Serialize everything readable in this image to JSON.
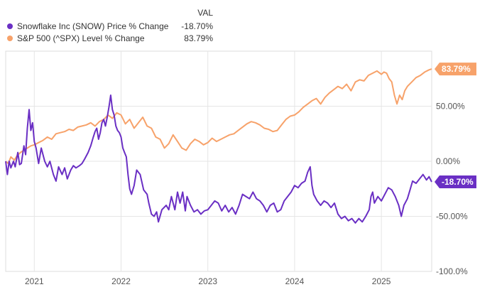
{
  "chart_data": {
    "type": "line",
    "legend_header": "VAL",
    "ylim": [
      -100,
      100
    ],
    "xlim": [
      2020.67,
      2025.58
    ],
    "y_ticks": [
      {
        "value": 50,
        "label": "50.00%"
      },
      {
        "value": 0,
        "label": "0.00%"
      },
      {
        "value": -50,
        "label": "-50.00%"
      },
      {
        "value": -100,
        "label": "-100.0%"
      }
    ],
    "x_ticks": [
      {
        "value": 2021,
        "label": "2021"
      },
      {
        "value": 2022,
        "label": "2022"
      },
      {
        "value": 2023,
        "label": "2023"
      },
      {
        "value": 2024,
        "label": "2024"
      },
      {
        "value": 2025,
        "label": "2025"
      }
    ],
    "grid": true,
    "legend_position": "top-left",
    "series": [
      {
        "name": "Snowflake Inc (SNOW) Price % Change",
        "value_label": "-18.70%",
        "last_value": -18.7,
        "color": "#6a2fc4",
        "points": [
          [
            2020.67,
            0
          ],
          [
            2020.69,
            -12
          ],
          [
            2020.71,
            0
          ],
          [
            2020.73,
            -6
          ],
          [
            2020.76,
            0
          ],
          [
            2020.78,
            -5
          ],
          [
            2020.81,
            8
          ],
          [
            2020.83,
            -3
          ],
          [
            2020.85,
            -2
          ],
          [
            2020.88,
            14
          ],
          [
            2020.9,
            6
          ],
          [
            2020.92,
            30
          ],
          [
            2020.94,
            47
          ],
          [
            2020.96,
            28
          ],
          [
            2020.98,
            35
          ],
          [
            2021.0,
            18
          ],
          [
            2021.02,
            12
          ],
          [
            2021.05,
            -2
          ],
          [
            2021.08,
            12
          ],
          [
            2021.12,
            0
          ],
          [
            2021.15,
            -5
          ],
          [
            2021.18,
            0
          ],
          [
            2021.22,
            -12
          ],
          [
            2021.25,
            -18
          ],
          [
            2021.28,
            -5
          ],
          [
            2021.32,
            -12
          ],
          [
            2021.35,
            -6
          ],
          [
            2021.38,
            -16
          ],
          [
            2021.42,
            -8
          ],
          [
            2021.45,
            -4
          ],
          [
            2021.48,
            -6
          ],
          [
            2021.52,
            -4
          ],
          [
            2021.55,
            -2
          ],
          [
            2021.58,
            2
          ],
          [
            2021.62,
            8
          ],
          [
            2021.65,
            14
          ],
          [
            2021.68,
            22
          ],
          [
            2021.7,
            27
          ],
          [
            2021.72,
            30
          ],
          [
            2021.74,
            20
          ],
          [
            2021.76,
            26
          ],
          [
            2021.78,
            35
          ],
          [
            2021.8,
            38
          ],
          [
            2021.82,
            32
          ],
          [
            2021.84,
            40
          ],
          [
            2021.86,
            49
          ],
          [
            2021.88,
            60
          ],
          [
            2021.9,
            47
          ],
          [
            2021.92,
            42
          ],
          [
            2021.94,
            32
          ],
          [
            2021.96,
            28
          ],
          [
            2021.98,
            26
          ],
          [
            2022.0,
            22
          ],
          [
            2022.02,
            12
          ],
          [
            2022.04,
            8
          ],
          [
            2022.06,
            4
          ],
          [
            2022.08,
            -12
          ],
          [
            2022.1,
            -25
          ],
          [
            2022.12,
            -30
          ],
          [
            2022.15,
            -22
          ],
          [
            2022.18,
            -8
          ],
          [
            2022.22,
            -12
          ],
          [
            2022.26,
            -26
          ],
          [
            2022.3,
            -30
          ],
          [
            2022.32,
            -38
          ],
          [
            2022.35,
            -48
          ],
          [
            2022.38,
            -50
          ],
          [
            2022.41,
            -46
          ],
          [
            2022.43,
            -55
          ],
          [
            2022.47,
            -44
          ],
          [
            2022.52,
            -40
          ],
          [
            2022.55,
            -44
          ],
          [
            2022.58,
            -32
          ],
          [
            2022.62,
            -44
          ],
          [
            2022.65,
            -28
          ],
          [
            2022.68,
            -38
          ],
          [
            2022.71,
            -28
          ],
          [
            2022.74,
            -45
          ],
          [
            2022.76,
            -32
          ],
          [
            2022.8,
            -40
          ],
          [
            2022.84,
            -46
          ],
          [
            2022.88,
            -44
          ],
          [
            2022.92,
            -48
          ],
          [
            2022.96,
            -45
          ],
          [
            2023.0,
            -44
          ],
          [
            2023.04,
            -40
          ],
          [
            2023.08,
            -36
          ],
          [
            2023.12,
            -38
          ],
          [
            2023.16,
            -45
          ],
          [
            2023.2,
            -40
          ],
          [
            2023.24,
            -46
          ],
          [
            2023.28,
            -42
          ],
          [
            2023.32,
            -48
          ],
          [
            2023.36,
            -40
          ],
          [
            2023.4,
            -30
          ],
          [
            2023.44,
            -32
          ],
          [
            2023.48,
            -34
          ],
          [
            2023.52,
            -28
          ],
          [
            2023.56,
            -34
          ],
          [
            2023.6,
            -36
          ],
          [
            2023.64,
            -40
          ],
          [
            2023.68,
            -46
          ],
          [
            2023.72,
            -40
          ],
          [
            2023.76,
            -38
          ],
          [
            2023.8,
            -46
          ],
          [
            2023.84,
            -44
          ],
          [
            2023.88,
            -36
          ],
          [
            2023.92,
            -32
          ],
          [
            2023.96,
            -28
          ],
          [
            2024.0,
            -22
          ],
          [
            2024.04,
            -24
          ],
          [
            2024.08,
            -20
          ],
          [
            2024.12,
            -18
          ],
          [
            2024.15,
            -10
          ],
          [
            2024.18,
            -5
          ],
          [
            2024.2,
            -22
          ],
          [
            2024.22,
            -30
          ],
          [
            2024.26,
            -36
          ],
          [
            2024.3,
            -40
          ],
          [
            2024.34,
            -36
          ],
          [
            2024.38,
            -38
          ],
          [
            2024.42,
            -42
          ],
          [
            2024.46,
            -38
          ],
          [
            2024.5,
            -48
          ],
          [
            2024.54,
            -52
          ],
          [
            2024.58,
            -50
          ],
          [
            2024.62,
            -54
          ],
          [
            2024.66,
            -52
          ],
          [
            2024.7,
            -56
          ],
          [
            2024.74,
            -52
          ],
          [
            2024.78,
            -55
          ],
          [
            2024.82,
            -50
          ],
          [
            2024.86,
            -44
          ],
          [
            2024.88,
            -32
          ],
          [
            2024.9,
            -28
          ],
          [
            2024.92,
            -38
          ],
          [
            2024.96,
            -32
          ],
          [
            2025.0,
            -36
          ],
          [
            2025.04,
            -30
          ],
          [
            2025.08,
            -24
          ],
          [
            2025.12,
            -26
          ],
          [
            2025.16,
            -32
          ],
          [
            2025.2,
            -40
          ],
          [
            2025.23,
            -50
          ],
          [
            2025.26,
            -40
          ],
          [
            2025.3,
            -34
          ],
          [
            2025.33,
            -26
          ],
          [
            2025.36,
            -18
          ],
          [
            2025.4,
            -20
          ],
          [
            2025.44,
            -16
          ],
          [
            2025.48,
            -12
          ],
          [
            2025.52,
            -17
          ],
          [
            2025.55,
            -14
          ],
          [
            2025.58,
            -18.7
          ]
        ]
      },
      {
        "name": "S&P 500 (^SPX) Level % Change",
        "value_label": "83.79%",
        "last_value": 83.79,
        "color": "#f7a26a",
        "points": [
          [
            2020.67,
            0
          ],
          [
            2020.7,
            -2
          ],
          [
            2020.73,
            4
          ],
          [
            2020.77,
            1
          ],
          [
            2020.8,
            5
          ],
          [
            2020.84,
            8
          ],
          [
            2020.88,
            10
          ],
          [
            2020.92,
            12
          ],
          [
            2020.96,
            14
          ],
          [
            2021.0,
            15
          ],
          [
            2021.05,
            17
          ],
          [
            2021.1,
            19
          ],
          [
            2021.15,
            22
          ],
          [
            2021.2,
            20
          ],
          [
            2021.25,
            25
          ],
          [
            2021.3,
            26
          ],
          [
            2021.35,
            27
          ],
          [
            2021.4,
            29
          ],
          [
            2021.45,
            28
          ],
          [
            2021.5,
            31
          ],
          [
            2021.55,
            32
          ],
          [
            2021.6,
            33
          ],
          [
            2021.65,
            35
          ],
          [
            2021.7,
            32
          ],
          [
            2021.75,
            36
          ],
          [
            2021.8,
            38
          ],
          [
            2021.85,
            42
          ],
          [
            2021.9,
            39
          ],
          [
            2021.95,
            44
          ],
          [
            2022.0,
            42
          ],
          [
            2022.05,
            34
          ],
          [
            2022.1,
            38
          ],
          [
            2022.15,
            30
          ],
          [
            2022.2,
            35
          ],
          [
            2022.25,
            40
          ],
          [
            2022.3,
            32
          ],
          [
            2022.35,
            30
          ],
          [
            2022.4,
            22
          ],
          [
            2022.45,
            20
          ],
          [
            2022.5,
            12
          ],
          [
            2022.55,
            16
          ],
          [
            2022.6,
            24
          ],
          [
            2022.65,
            18
          ],
          [
            2022.7,
            12
          ],
          [
            2022.75,
            10
          ],
          [
            2022.8,
            16
          ],
          [
            2022.85,
            20
          ],
          [
            2022.9,
            18
          ],
          [
            2022.95,
            15
          ],
          [
            2023.0,
            17
          ],
          [
            2023.05,
            21
          ],
          [
            2023.1,
            18
          ],
          [
            2023.15,
            20
          ],
          [
            2023.2,
            22
          ],
          [
            2023.25,
            24
          ],
          [
            2023.3,
            25
          ],
          [
            2023.35,
            28
          ],
          [
            2023.4,
            31
          ],
          [
            2023.45,
            34
          ],
          [
            2023.5,
            36
          ],
          [
            2023.55,
            35
          ],
          [
            2023.6,
            33
          ],
          [
            2023.65,
            30
          ],
          [
            2023.7,
            29
          ],
          [
            2023.75,
            27
          ],
          [
            2023.8,
            28
          ],
          [
            2023.85,
            33
          ],
          [
            2023.9,
            38
          ],
          [
            2023.95,
            41
          ],
          [
            2024.0,
            42
          ],
          [
            2024.05,
            45
          ],
          [
            2024.1,
            49
          ],
          [
            2024.15,
            52
          ],
          [
            2024.2,
            55
          ],
          [
            2024.25,
            57
          ],
          [
            2024.3,
            52
          ],
          [
            2024.35,
            58
          ],
          [
            2024.4,
            62
          ],
          [
            2024.45,
            65
          ],
          [
            2024.5,
            68
          ],
          [
            2024.55,
            66
          ],
          [
            2024.6,
            70
          ],
          [
            2024.65,
            64
          ],
          [
            2024.7,
            72
          ],
          [
            2024.75,
            74
          ],
          [
            2024.8,
            73
          ],
          [
            2024.85,
            78
          ],
          [
            2024.9,
            80
          ],
          [
            2024.95,
            82
          ],
          [
            2025.0,
            79
          ],
          [
            2025.03,
            81
          ],
          [
            2025.06,
            80
          ],
          [
            2025.09,
            75
          ],
          [
            2025.12,
            72
          ],
          [
            2025.15,
            60
          ],
          [
            2025.18,
            52
          ],
          [
            2025.21,
            60
          ],
          [
            2025.24,
            56
          ],
          [
            2025.27,
            64
          ],
          [
            2025.3,
            68
          ],
          [
            2025.35,
            72
          ],
          [
            2025.4,
            76
          ],
          [
            2025.45,
            78
          ],
          [
            2025.5,
            81
          ],
          [
            2025.55,
            83
          ],
          [
            2025.58,
            83.79
          ]
        ]
      }
    ]
  }
}
